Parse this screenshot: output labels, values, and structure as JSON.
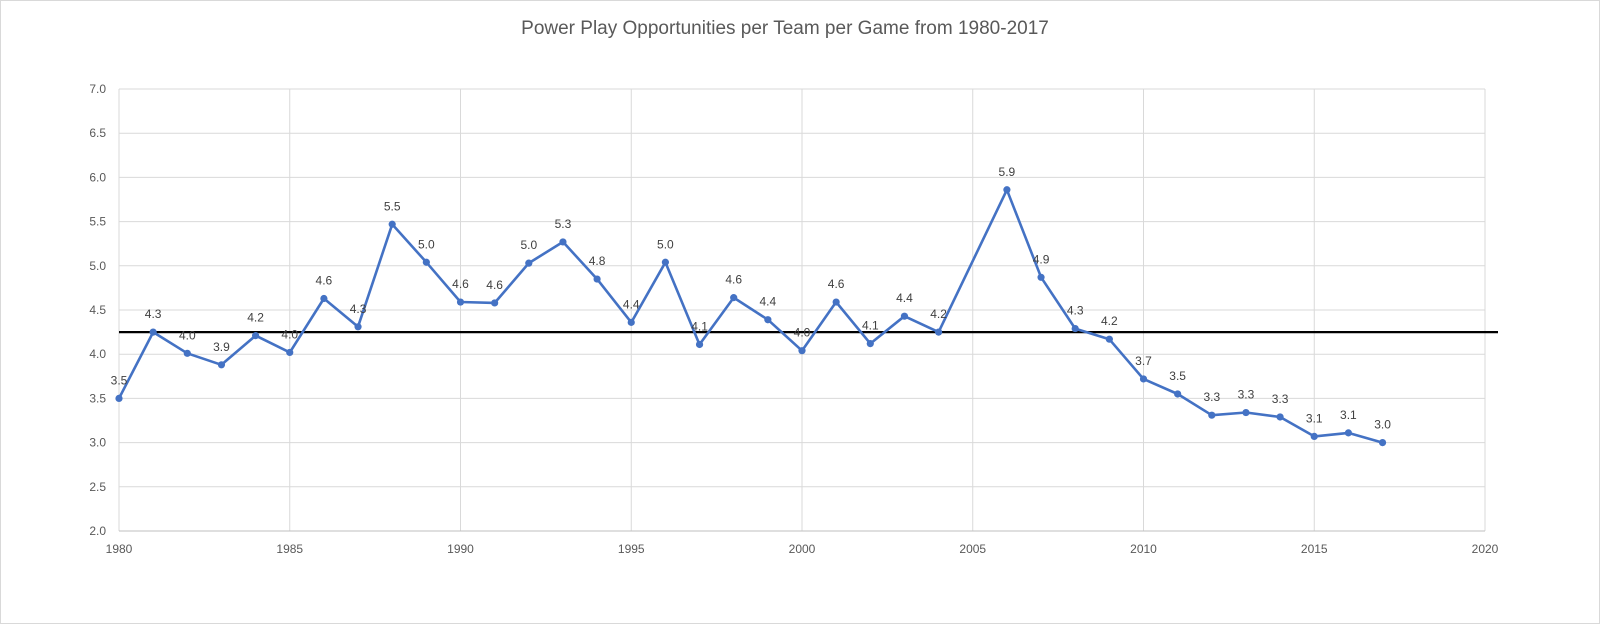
{
  "chart_data": {
    "type": "line",
    "title": "Power Play Opportunities per Team per Game from 1980-2017",
    "xlabel": "",
    "ylabel": "",
    "xlim": [
      1980,
      2020
    ],
    "ylim": [
      2.0,
      7.0
    ],
    "x_ticks": [
      "1980",
      "1985",
      "1990",
      "1995",
      "2000",
      "2005",
      "2010",
      "2015",
      "2020"
    ],
    "y_ticks": [
      "2.0",
      "2.5",
      "3.0",
      "3.5",
      "4.0",
      "4.5",
      "5.0",
      "5.5",
      "6.0",
      "6.5",
      "7.0"
    ],
    "grid": true,
    "legend": "none",
    "series": [
      {
        "color": "#4472c4",
        "points": [
          {
            "x": 1980,
            "y": 3.5,
            "label": "3.5"
          },
          {
            "x": 1981,
            "y": 4.25,
            "label": "4.3"
          },
          {
            "x": 1982,
            "y": 4.01,
            "label": "4.0"
          },
          {
            "x": 1983,
            "y": 3.88,
            "label": "3.9"
          },
          {
            "x": 1984,
            "y": 4.21,
            "label": "4.2"
          },
          {
            "x": 1985,
            "y": 4.02,
            "label": "4.0"
          },
          {
            "x": 1986,
            "y": 4.63,
            "label": "4.6"
          },
          {
            "x": 1987,
            "y": 4.31,
            "label": "4.3"
          },
          {
            "x": 1988,
            "y": 5.47,
            "label": "5.5"
          },
          {
            "x": 1989,
            "y": 5.04,
            "label": "5.0"
          },
          {
            "x": 1990,
            "y": 4.59,
            "label": "4.6"
          },
          {
            "x": 1991,
            "y": 4.58,
            "label": "4.6"
          },
          {
            "x": 1992,
            "y": 5.03,
            "label": "5.0"
          },
          {
            "x": 1993,
            "y": 5.27,
            "label": "5.3"
          },
          {
            "x": 1994,
            "y": 4.85,
            "label": "4.8"
          },
          {
            "x": 1995,
            "y": 4.36,
            "label": "4.4"
          },
          {
            "x": 1996,
            "y": 5.04,
            "label": "5.0"
          },
          {
            "x": 1997,
            "y": 4.11,
            "label": "4.1"
          },
          {
            "x": 1998,
            "y": 4.64,
            "label": "4.6"
          },
          {
            "x": 1999,
            "y": 4.39,
            "label": "4.4"
          },
          {
            "x": 2000,
            "y": 4.04,
            "label": "4.0"
          },
          {
            "x": 2001,
            "y": 4.59,
            "label": "4.6"
          },
          {
            "x": 2002,
            "y": 4.12,
            "label": "4.1"
          },
          {
            "x": 2003,
            "y": 4.43,
            "label": "4.4"
          },
          {
            "x": 2004,
            "y": 4.25,
            "label": "4.2"
          },
          {
            "x": 2006,
            "y": 5.86,
            "label": "5.9"
          },
          {
            "x": 2007,
            "y": 4.87,
            "label": "4.9"
          },
          {
            "x": 2008,
            "y": 4.29,
            "label": "4.3"
          },
          {
            "x": 2009,
            "y": 4.17,
            "label": "4.2"
          },
          {
            "x": 2010,
            "y": 3.72,
            "label": "3.7"
          },
          {
            "x": 2011,
            "y": 3.55,
            "label": "3.5"
          },
          {
            "x": 2012,
            "y": 3.31,
            "label": "3.3"
          },
          {
            "x": 2013,
            "y": 3.34,
            "label": "3.3"
          },
          {
            "x": 2014,
            "y": 3.29,
            "label": "3.3"
          },
          {
            "x": 2015,
            "y": 3.07,
            "label": "3.1"
          },
          {
            "x": 2016,
            "y": 3.11,
            "label": "3.1"
          },
          {
            "x": 2017,
            "y": 3.0,
            "label": "3.0"
          }
        ]
      }
    ],
    "reference_line": {
      "y": 4.25,
      "color": "#000000"
    },
    "colors": {
      "gridline": "#d9d9d9",
      "axis": "#bfbfbf",
      "text": "#595959"
    }
  }
}
